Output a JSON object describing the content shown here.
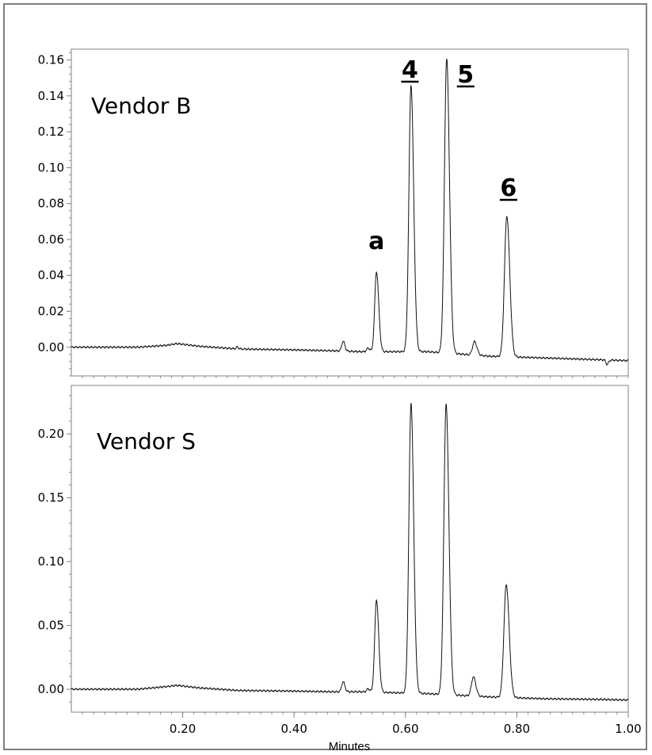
{
  "chart_data": [
    {
      "type": "line",
      "title": "",
      "annotation": "Vendor B",
      "xlabel": "Minutes",
      "ylabel": "",
      "xlim": [
        0.0,
        1.0
      ],
      "ylim": [
        -0.016,
        0.166
      ],
      "yticks": [
        "0.16",
        "0.14",
        "0.12",
        "0.10",
        "0.08",
        "0.06",
        "0.04",
        "0.02",
        "0.00"
      ],
      "ytick_values": [
        0.16,
        0.14,
        0.12,
        0.1,
        0.08,
        0.06,
        0.04,
        0.02,
        0.0
      ],
      "peak_labels": [
        {
          "text": "a",
          "x": 0.548,
          "underline": false
        },
        {
          "text": "4",
          "x": 0.608,
          "underline": true
        },
        {
          "text": "5",
          "x": 0.708,
          "underline": true
        },
        {
          "text": "6",
          "x": 0.785,
          "underline": true
        }
      ],
      "baseline": [
        [
          0.0,
          0.0
        ],
        [
          0.12,
          0.0
        ],
        [
          0.17,
          0.001
        ],
        [
          0.19,
          0.002
        ],
        [
          0.23,
          0.0005
        ],
        [
          0.3,
          -0.001
        ],
        [
          0.4,
          -0.0015
        ],
        [
          0.47,
          -0.002
        ],
        [
          0.52,
          -0.0025
        ],
        [
          0.64,
          -0.0025
        ],
        [
          0.75,
          -0.005
        ],
        [
          0.85,
          -0.006
        ],
        [
          0.95,
          -0.007
        ],
        [
          1.0,
          -0.0075
        ]
      ],
      "peaks": [
        {
          "x": 0.298,
          "height": 0.001,
          "width": 0.002
        },
        {
          "x": 0.488,
          "height": 0.0055,
          "width": 0.0025
        },
        {
          "x": 0.533,
          "height": 0.002,
          "width": 0.0025
        },
        {
          "x": 0.548,
          "height": 0.0445,
          "width": 0.0032
        },
        {
          "x": 0.61,
          "height": 0.1485,
          "width": 0.0038
        },
        {
          "x": 0.674,
          "height": 0.164,
          "width": 0.004
        },
        {
          "x": 0.724,
          "height": 0.0075,
          "width": 0.0035
        },
        {
          "x": 0.782,
          "height": 0.0785,
          "width": 0.0042
        },
        {
          "x": 0.962,
          "height": -0.0025,
          "width": 0.002
        }
      ]
    },
    {
      "type": "line",
      "title": "",
      "annotation": "Vendor S",
      "xlabel": "Minutes",
      "ylabel": "",
      "xlim": [
        0.0,
        1.0
      ],
      "ylim": [
        -0.018,
        0.238
      ],
      "yticks": [
        "0.20",
        "0.15",
        "0.10",
        "0.05",
        "0.00"
      ],
      "ytick_values": [
        0.2,
        0.15,
        0.1,
        0.05,
        0.0
      ],
      "xticks": [
        "0.20",
        "0.40",
        "0.60",
        "0.80",
        "1.00"
      ],
      "xtick_values": [
        0.2,
        0.4,
        0.6,
        0.8,
        1.0
      ],
      "baseline": [
        [
          0.0,
          0.0
        ],
        [
          0.12,
          0.0
        ],
        [
          0.17,
          0.002
        ],
        [
          0.19,
          0.003
        ],
        [
          0.23,
          0.001
        ],
        [
          0.3,
          -0.001
        ],
        [
          0.4,
          -0.0015
        ],
        [
          0.47,
          -0.002
        ],
        [
          0.52,
          -0.002
        ],
        [
          0.64,
          -0.0035
        ],
        [
          0.75,
          -0.006
        ],
        [
          0.85,
          -0.0075
        ],
        [
          0.95,
          -0.008
        ],
        [
          1.0,
          -0.0085
        ]
      ],
      "peaks": [
        {
          "x": 0.488,
          "height": 0.008,
          "width": 0.0025
        },
        {
          "x": 0.533,
          "height": 0.0025,
          "width": 0.0025
        },
        {
          "x": 0.548,
          "height": 0.0725,
          "width": 0.0032
        },
        {
          "x": 0.61,
          "height": 0.2275,
          "width": 0.0038
        },
        {
          "x": 0.673,
          "height": 0.228,
          "width": 0.004
        },
        {
          "x": 0.722,
          "height": 0.015,
          "width": 0.0035
        },
        {
          "x": 0.781,
          "height": 0.0885,
          "width": 0.0042
        }
      ]
    }
  ]
}
